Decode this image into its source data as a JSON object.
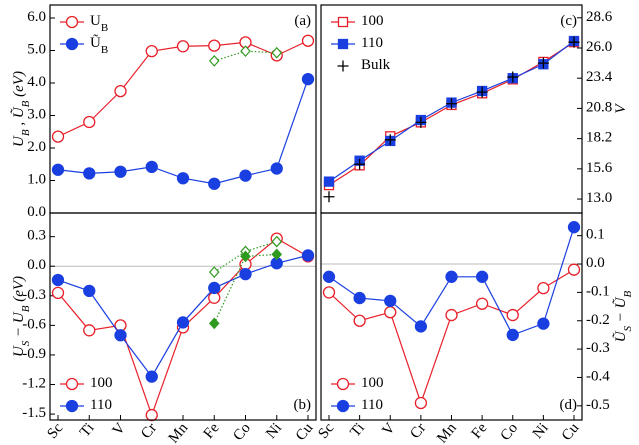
{
  "chart_data": [
    {
      "type": "line",
      "panel_label": "(a)",
      "ylabel": "U_B , Ũ_B  (eV)",
      "legend": "upper left",
      "yaxis_side": "left",
      "ylim": [
        0,
        6.4
      ],
      "yticks": [
        {
          "value": 0,
          "label": "0.0"
        },
        {
          "value": 1,
          "label": "1.0"
        },
        {
          "value": 2,
          "label": "2.0"
        },
        {
          "value": 3,
          "label": "3.0"
        },
        {
          "value": 4,
          "label": "4.0"
        },
        {
          "value": 5,
          "label": "5.0"
        },
        {
          "value": 6,
          "label": "6.0"
        }
      ],
      "series": [
        {
          "name": "U_B",
          "color": "#e8202a",
          "marker": "circle-open",
          "line": "solid",
          "values": [
            2.35,
            2.8,
            3.75,
            4.98,
            5.13,
            5.15,
            5.25,
            4.85,
            5.3
          ]
        },
        {
          "name": "Ũ_B",
          "color": "#1a3fe0",
          "marker": "circle",
          "line": "solid",
          "values": [
            1.33,
            1.22,
            1.27,
            1.42,
            1.07,
            0.9,
            1.15,
            1.37,
            4.12
          ]
        },
        {
          "color": "#2e9a1e",
          "marker": "diamond-open",
          "line": "dotted",
          "values": [
            null,
            null,
            null,
            null,
            null,
            4.68,
            4.98,
            4.93,
            null
          ]
        }
      ]
    },
    {
      "type": "line",
      "panel_label": "(b)",
      "ylabel": "U_S − U_B  (eV)",
      "legend": "lower left",
      "yaxis_side": "left",
      "categories": [
        "Sc",
        "Ti",
        "V",
        "Cr",
        "Mn",
        "Fe",
        "Co",
        "Ni",
        "Cu"
      ],
      "ylim": [
        -1.56,
        0.54
      ],
      "yticks": [
        0.3,
        {
          "value": 0,
          "label": "0.0"
        },
        -0.3,
        -0.6,
        -0.9,
        -1.2,
        -1.5
      ],
      "series": [
        {
          "name": "100",
          "color": "#e8202a",
          "marker": "circle-open",
          "line": "solid",
          "values": [
            -0.27,
            -0.65,
            -0.6,
            -1.51,
            -0.62,
            -0.32,
            0.02,
            0.28,
            0.1
          ]
        },
        {
          "name": "110",
          "color": "#1a3fe0",
          "marker": "circle",
          "line": "solid",
          "values": [
            -0.14,
            -0.25,
            -0.7,
            -1.12,
            -0.57,
            -0.22,
            -0.08,
            0.03,
            0.11
          ]
        },
        {
          "color": "#2e9a1e",
          "marker": "diamond-open",
          "line": "dotted",
          "values": [
            null,
            null,
            null,
            null,
            null,
            -0.06,
            0.15,
            0.25,
            null
          ]
        },
        {
          "color": "#2e9a1e",
          "marker": "diamond",
          "line": "dotted",
          "values": [
            null,
            null,
            null,
            null,
            null,
            -0.58,
            0.1,
            0.12,
            null
          ]
        }
      ]
    },
    {
      "type": "line",
      "panel_label": "(c)",
      "ylabel": "V",
      "legend": "upper left",
      "yaxis_side": "right",
      "ylim": [
        11.8,
        29.7
      ],
      "yticks": [
        {
          "value": 13,
          "label": "13.0"
        },
        15.6,
        18.2,
        20.8,
        23.4,
        {
          "value": 26,
          "label": "26.0"
        },
        28.6
      ],
      "series": [
        {
          "name": "100",
          "color": "#e8202a",
          "marker": "square-open",
          "line": "solid",
          "values": [
            14.2,
            15.9,
            18.4,
            19.6,
            21.1,
            22.1,
            23.3,
            24.8,
            26.5
          ]
        },
        {
          "name": "110",
          "color": "#1a3fe0",
          "marker": "square",
          "line": "solid",
          "values": [
            14.5,
            16.3,
            18.0,
            19.8,
            21.3,
            22.3,
            23.4,
            24.6,
            26.6
          ]
        },
        {
          "name": "Bulk",
          "color": "#000000",
          "marker": "plus",
          "line": "none",
          "values": [
            13.2,
            16.0,
            18.1,
            19.6,
            21.2,
            22.2,
            23.5,
            24.7,
            26.5
          ]
        }
      ]
    },
    {
      "type": "line",
      "panel_label": "(d)",
      "ylabel": "Ũ_S − Ũ_B",
      "legend": "lower left",
      "yaxis_side": "right",
      "categories": [
        "Sc",
        "Ti",
        "V",
        "Cr",
        "Mn",
        "Fe",
        "Co",
        "Ni",
        "Cu"
      ],
      "ylim": [
        -0.55,
        0.18
      ],
      "yticks": [
        0.1,
        {
          "value": 0,
          "label": "0.0"
        },
        -0.1,
        -0.2,
        -0.3,
        -0.4,
        -0.5
      ],
      "series": [
        {
          "name": "100",
          "color": "#e8202a",
          "marker": "circle-open",
          "line": "solid",
          "values": [
            -0.1,
            -0.2,
            -0.17,
            -0.49,
            -0.18,
            -0.14,
            -0.18,
            -0.085,
            -0.02
          ]
        },
        {
          "name": "110",
          "color": "#1a3fe0",
          "marker": "circle",
          "line": "solid",
          "values": [
            -0.045,
            -0.12,
            -0.13,
            -0.22,
            -0.045,
            -0.045,
            -0.25,
            -0.21,
            0.13
          ]
        }
      ]
    }
  ]
}
